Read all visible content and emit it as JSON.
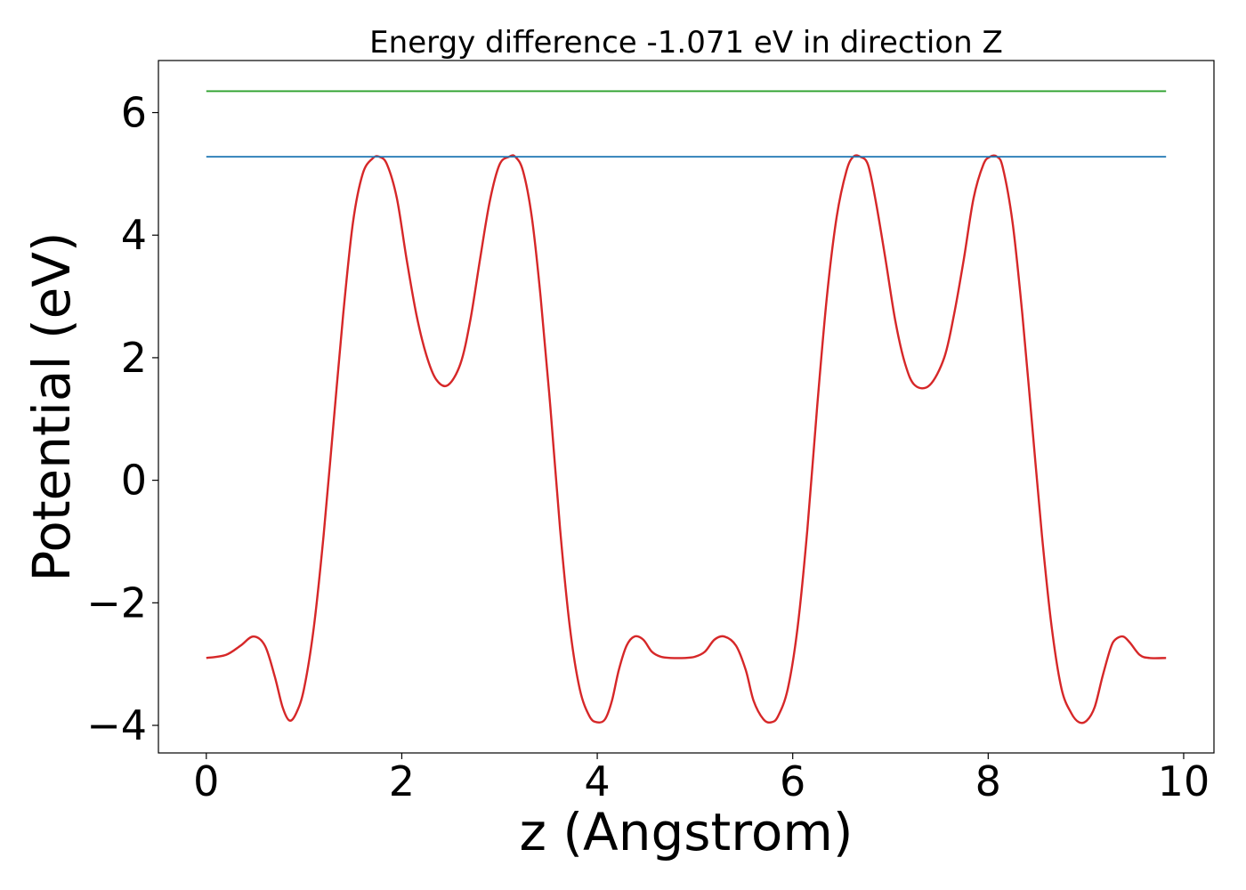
{
  "chart_data": {
    "type": "line",
    "title": "Energy difference -1.071 eV in direction Z",
    "xlabel": "z (Angstrom)",
    "ylabel": "Potential (eV)",
    "xlim": [
      -0.49,
      10.31
    ],
    "ylim": [
      -4.45,
      6.85
    ],
    "xticks": [
      0,
      2,
      4,
      6,
      8,
      10
    ],
    "xtick_labels": [
      "0",
      "2",
      "4",
      "6",
      "8",
      "10"
    ],
    "yticks": [
      -4,
      -2,
      0,
      2,
      4,
      6
    ],
    "ytick_labels": [
      "−4",
      "−2",
      "0",
      "2",
      "4",
      "6"
    ],
    "grid": false,
    "series": [
      {
        "color": "#d62728",
        "x": [
          0.0,
          0.2,
          0.35,
          0.48,
          0.6,
          0.7,
          0.78,
          0.85,
          0.92,
          1.0,
          1.1,
          1.2,
          1.3,
          1.4,
          1.5,
          1.6,
          1.7,
          1.77,
          1.85,
          1.95,
          2.05,
          2.15,
          2.25,
          2.35,
          2.47,
          2.6,
          2.7,
          2.8,
          2.9,
          3.0,
          3.1,
          3.16,
          3.24,
          3.33,
          3.42,
          3.52,
          3.62,
          3.72,
          3.82,
          3.92,
          4.0,
          4.08,
          4.15,
          4.22,
          4.3,
          4.38,
          4.47,
          4.56,
          4.65,
          4.75,
          4.9,
          5.0,
          5.1,
          5.2,
          5.3,
          5.42,
          5.52,
          5.6,
          5.7,
          5.78,
          5.85,
          5.95,
          6.05,
          6.15,
          6.25,
          6.35,
          6.45,
          6.55,
          6.62,
          6.69,
          6.77,
          6.85,
          6.95,
          7.05,
          7.15,
          7.25,
          7.4,
          7.55,
          7.65,
          7.75,
          7.85,
          7.95,
          8.02,
          8.09,
          8.15,
          8.25,
          8.35,
          8.45,
          8.55,
          8.65,
          8.75,
          8.85,
          8.93,
          9.01,
          9.09,
          9.17,
          9.25,
          9.3,
          9.38,
          9.45,
          9.55,
          9.65,
          9.82
        ],
        "values": [
          -2.9,
          -2.85,
          -2.7,
          -2.55,
          -2.7,
          -3.2,
          -3.7,
          -3.92,
          -3.8,
          -3.4,
          -2.4,
          -0.9,
          0.9,
          2.7,
          4.2,
          5.0,
          5.25,
          5.28,
          5.15,
          4.6,
          3.6,
          2.7,
          2.05,
          1.65,
          1.55,
          1.9,
          2.6,
          3.6,
          4.55,
          5.15,
          5.28,
          5.28,
          5.05,
          4.3,
          3.0,
          1.2,
          -0.8,
          -2.4,
          -3.4,
          -3.85,
          -3.95,
          -3.9,
          -3.6,
          -3.1,
          -2.7,
          -2.55,
          -2.6,
          -2.8,
          -2.88,
          -2.9,
          -2.9,
          -2.88,
          -2.8,
          -2.6,
          -2.55,
          -2.7,
          -3.1,
          -3.6,
          -3.9,
          -3.95,
          -3.85,
          -3.4,
          -2.4,
          -0.8,
          1.2,
          3.0,
          4.3,
          5.05,
          5.28,
          5.28,
          5.15,
          4.55,
          3.6,
          2.6,
          1.9,
          1.55,
          1.55,
          2.0,
          2.7,
          3.6,
          4.6,
          5.15,
          5.28,
          5.28,
          5.1,
          4.2,
          2.7,
          0.9,
          -0.9,
          -2.4,
          -3.4,
          -3.8,
          -3.95,
          -3.92,
          -3.7,
          -3.2,
          -2.75,
          -2.6,
          -2.55,
          -2.65,
          -2.85,
          -2.9,
          -2.9
        ]
      },
      {
        "color": "#1f77b4",
        "x": [
          0.0,
          9.82
        ],
        "values": [
          5.28,
          5.28
        ]
      },
      {
        "color": "#2ca02c",
        "x": [
          0.0,
          9.82
        ],
        "values": [
          6.35,
          6.35
        ]
      }
    ]
  }
}
